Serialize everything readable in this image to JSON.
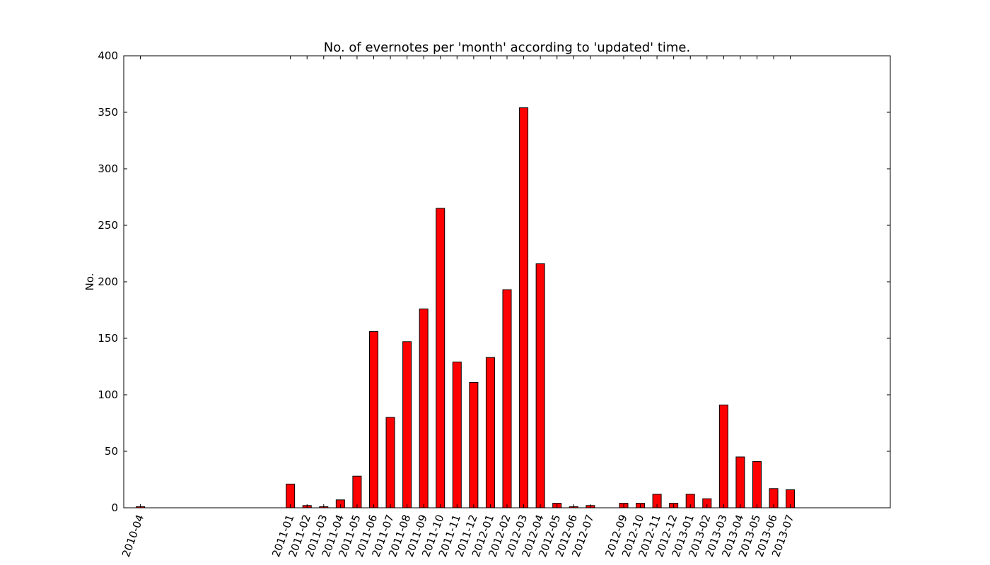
{
  "chart_data": {
    "type": "bar",
    "title": "No. of evernotes per 'month' according to 'updated' time.",
    "xlabel": "",
    "ylabel": "No.",
    "ylim": [
      0,
      400
    ],
    "yticks": [
      0,
      50,
      100,
      150,
      200,
      250,
      300,
      350,
      400
    ],
    "grid": false,
    "legend": "none",
    "bar_color": "#ff0000",
    "edge_color": "#000000",
    "x_axis_kind": "monthly",
    "x_range_months": [
      "2010-03",
      "2014-01"
    ],
    "categories": [
      "2010-04",
      "2011-01",
      "2011-02",
      "2011-03",
      "2011-04",
      "2011-05",
      "2011-06",
      "2011-07",
      "2011-08",
      "2011-09",
      "2011-10",
      "2011-11",
      "2011-12",
      "2012-01",
      "2012-02",
      "2012-03",
      "2012-04",
      "2012-05",
      "2012-06",
      "2012-07",
      "2012-09",
      "2012-10",
      "2012-11",
      "2012-12",
      "2013-01",
      "2013-02",
      "2013-03",
      "2013-04",
      "2013-05",
      "2013-06",
      "2013-07"
    ],
    "values": [
      1,
      21,
      2,
      1,
      7,
      28,
      156,
      80,
      147,
      176,
      265,
      129,
      111,
      133,
      193,
      354,
      216,
      4,
      1,
      2,
      4,
      4,
      12,
      4,
      12,
      8,
      91,
      45,
      41,
      17,
      16
    ]
  }
}
